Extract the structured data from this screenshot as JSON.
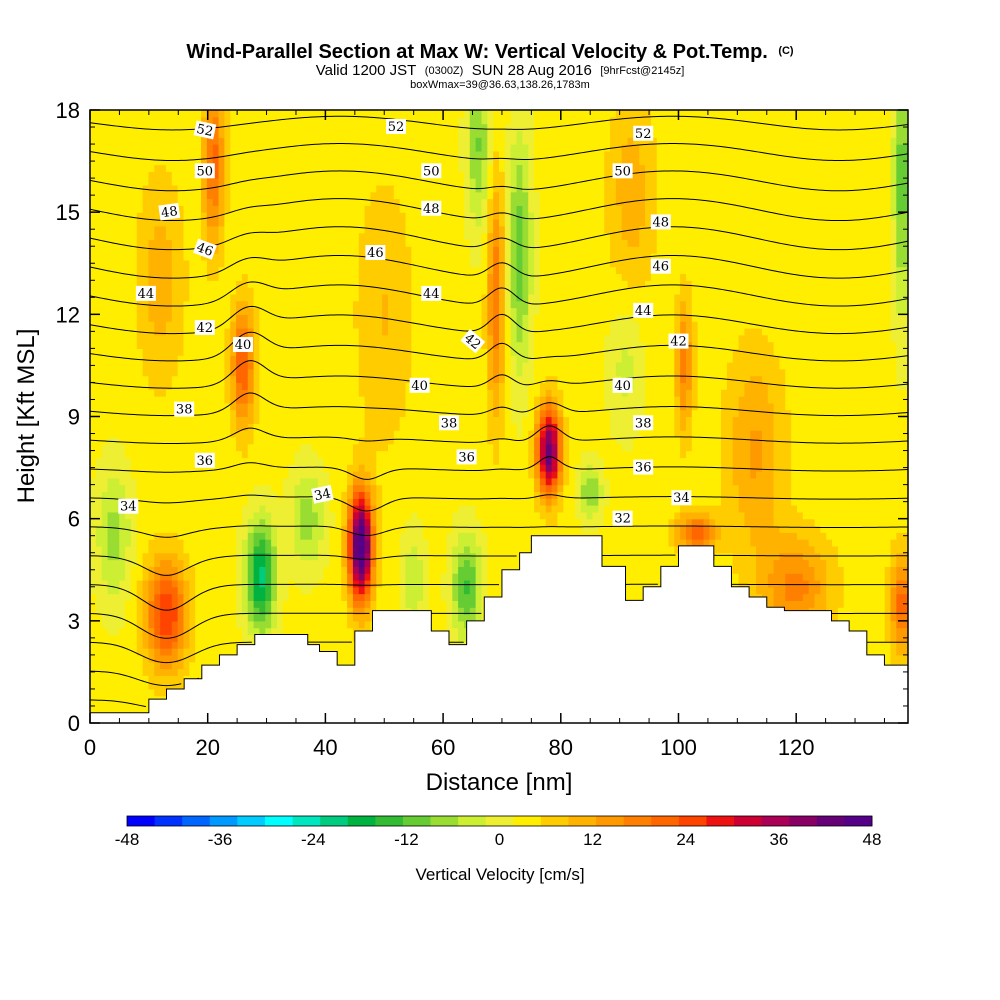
{
  "chart_data": {
    "type": "heatmap",
    "title": "Wind-Parallel Section at Max W: Vertical Velocity & Pot.Temp.",
    "title_mark": "(C)",
    "subtitle": {
      "prefix": "Valid 1200 JST",
      "utc": "(0300Z)",
      "date": "SUN 28 Aug 2016",
      "forecast": "[9hrFcst@2145z]"
    },
    "subtitle2": "boxWmax=39@36.63,138.26,1783m",
    "xlabel": "Distance [nm]",
    "ylabel": "Height [Kft MSL]",
    "xlim": [
      0,
      139
    ],
    "ylim": [
      0,
      18
    ],
    "xticks": [
      0,
      20,
      40,
      60,
      80,
      100,
      120
    ],
    "yticks": [
      0,
      3,
      6,
      9,
      12,
      15,
      18
    ],
    "colorbar": {
      "label": "Vertical Velocity [cm/s]",
      "range": [
        -48,
        48
      ],
      "ticks": [
        -48,
        -36,
        -24,
        -12,
        0,
        12,
        24,
        36,
        48
      ],
      "colors": [
        "#0000ff",
        "#0033ff",
        "#0066ff",
        "#0099ff",
        "#00ccff",
        "#00ffff",
        "#00e6bf",
        "#00cc80",
        "#00b340",
        "#33bb33",
        "#66cc33",
        "#99dd33",
        "#ccee33",
        "#eeee33",
        "#ffee00",
        "#ffcc00",
        "#ffb300",
        "#ff9900",
        "#ff8000",
        "#ff6600",
        "#ff4400",
        "#ee1111",
        "#cc0033",
        "#aa0055",
        "#880066",
        "#660077",
        "#550088"
      ]
    },
    "w_cells": [
      {
        "x": 13,
        "z": 3.2,
        "w": 24,
        "sx": 3.5,
        "sz": 1.6
      },
      {
        "x": 29,
        "z": 4.3,
        "w": -24,
        "sx": 2.5,
        "sz": 1.6
      },
      {
        "x": 46,
        "z": 5.2,
        "w": 48,
        "sx": 2.0,
        "sz": 1.6
      },
      {
        "x": 78,
        "z": 8.0,
        "w": 40,
        "sx": 2.0,
        "sz": 1.3
      },
      {
        "x": 26,
        "z": 10.5,
        "w": 20,
        "sx": 2.0,
        "sz": 1.8
      },
      {
        "x": 21,
        "z": 16.5,
        "w": 18,
        "sx": 1.8,
        "sz": 2.5
      },
      {
        "x": 73,
        "z": 13.8,
        "w": -14,
        "sx": 2.0,
        "sz": 3.5
      },
      {
        "x": 66,
        "z": 17.0,
        "w": -12,
        "sx": 2.0,
        "sz": 2.5
      },
      {
        "x": 69,
        "z": 12.5,
        "w": 16,
        "sx": 1.5,
        "sz": 3.5
      },
      {
        "x": 103,
        "z": 5.6,
        "w": 18,
        "sx": 3.5,
        "sz": 0.6
      },
      {
        "x": 101,
        "z": 10.5,
        "w": 14,
        "sx": 1.5,
        "sz": 2.0
      },
      {
        "x": 120,
        "z": 4.0,
        "w": 14,
        "sx": 6.0,
        "sz": 1.5
      },
      {
        "x": 138,
        "z": 3.5,
        "w": 18,
        "sx": 2.0,
        "sz": 1.5
      },
      {
        "x": 4,
        "z": 5.5,
        "w": -10,
        "sx": 3.0,
        "sz": 2.0
      },
      {
        "x": 64,
        "z": 4.0,
        "w": -16,
        "sx": 2.5,
        "sz": 1.5
      },
      {
        "x": 85,
        "z": 6.8,
        "w": -12,
        "sx": 2.0,
        "sz": 0.8
      },
      {
        "x": 138,
        "z": 16.0,
        "w": -14,
        "sx": 1.5,
        "sz": 4.0
      },
      {
        "x": 37,
        "z": 6.0,
        "w": -10,
        "sx": 3.0,
        "sz": 1.5
      },
      {
        "x": 55,
        "z": 4.2,
        "w": -8,
        "sx": 2.0,
        "sz": 1.5
      },
      {
        "x": 91,
        "z": 10.5,
        "w": -6,
        "sx": 3.0,
        "sz": 2.0
      },
      {
        "x": 113,
        "z": 8.0,
        "w": 10,
        "sx": 5.0,
        "sz": 3.0
      },
      {
        "x": 12,
        "z": 13.0,
        "w": 8,
        "sx": 4.0,
        "sz": 3.0
      },
      {
        "x": 50,
        "z": 12.0,
        "w": 6,
        "sx": 5.0,
        "sz": 4.0
      },
      {
        "x": 92,
        "z": 15.5,
        "w": 8,
        "sx": 4.0,
        "sz": 3.0
      }
    ],
    "terrain": [
      [
        0,
        0.3
      ],
      [
        10,
        0.3
      ],
      [
        10,
        0.7
      ],
      [
        13,
        0.7
      ],
      [
        13,
        1.0
      ],
      [
        16,
        1.0
      ],
      [
        16,
        1.3
      ],
      [
        19,
        1.3
      ],
      [
        19,
        1.7
      ],
      [
        22,
        1.7
      ],
      [
        22,
        2.0
      ],
      [
        25,
        2.0
      ],
      [
        25,
        2.3
      ],
      [
        28,
        2.3
      ],
      [
        28,
        2.6
      ],
      [
        37,
        2.6
      ],
      [
        37,
        2.3
      ],
      [
        39,
        2.3
      ],
      [
        39,
        2.1
      ],
      [
        42,
        2.1
      ],
      [
        42,
        1.7
      ],
      [
        45,
        1.7
      ],
      [
        45,
        2.7
      ],
      [
        48,
        2.7
      ],
      [
        48,
        3.3
      ],
      [
        58,
        3.3
      ],
      [
        58,
        2.7
      ],
      [
        61,
        2.7
      ],
      [
        61,
        2.3
      ],
      [
        64,
        2.3
      ],
      [
        64,
        3.0
      ],
      [
        67,
        3.0
      ],
      [
        67,
        3.7
      ],
      [
        70,
        3.7
      ],
      [
        70,
        4.5
      ],
      [
        73,
        4.5
      ],
      [
        73,
        5.0
      ],
      [
        75,
        5.0
      ],
      [
        75,
        5.5
      ],
      [
        87,
        5.5
      ],
      [
        87,
        4.6
      ],
      [
        91,
        4.6
      ],
      [
        91,
        3.6
      ],
      [
        94,
        3.6
      ],
      [
        94,
        4.0
      ],
      [
        97,
        4.0
      ],
      [
        97,
        4.6
      ],
      [
        100,
        4.6
      ],
      [
        100,
        5.2
      ],
      [
        106,
        5.2
      ],
      [
        106,
        4.6
      ],
      [
        109,
        4.6
      ],
      [
        109,
        4.0
      ],
      [
        112,
        4.0
      ],
      [
        112,
        3.7
      ],
      [
        115,
        3.7
      ],
      [
        115,
        3.4
      ],
      [
        118,
        3.4
      ],
      [
        118,
        3.3
      ],
      [
        126,
        3.3
      ],
      [
        126,
        3.0
      ],
      [
        129,
        3.0
      ],
      [
        129,
        2.7
      ],
      [
        132,
        2.7
      ],
      [
        132,
        2.0
      ],
      [
        135,
        2.0
      ],
      [
        135,
        1.7
      ],
      [
        139,
        1.7
      ]
    ],
    "isentropes": {
      "levels": [
        32,
        33,
        34,
        35,
        36,
        37,
        38,
        39,
        40,
        41,
        42,
        43,
        44,
        45,
        46,
        47,
        48,
        49,
        50,
        51,
        52,
        53
      ],
      "labels": [
        {
          "text": "34",
          "x": 6.5,
          "z": 6.35,
          "rot": 0
        },
        {
          "text": "36",
          "x": 19.5,
          "z": 7.7,
          "rot": 0
        },
        {
          "text": "38",
          "x": 16,
          "z": 9.2,
          "rot": 0
        },
        {
          "text": "40",
          "x": 26,
          "z": 11.1,
          "rot": 0
        },
        {
          "text": "42",
          "x": 19.5,
          "z": 11.6,
          "rot": 0
        },
        {
          "text": "44",
          "x": 9.5,
          "z": 12.6,
          "rot": 0
        },
        {
          "text": "46",
          "x": 19.5,
          "z": 13.9,
          "rot": 20
        },
        {
          "text": "48",
          "x": 13.5,
          "z": 15.0,
          "rot": -8
        },
        {
          "text": "50",
          "x": 19.5,
          "z": 16.2,
          "rot": 0
        },
        {
          "text": "52",
          "x": 19.5,
          "z": 17.4,
          "rot": 12
        },
        {
          "text": "34",
          "x": 39.5,
          "z": 6.7,
          "rot": -12
        },
        {
          "text": "36",
          "x": 64,
          "z": 7.8,
          "rot": 0
        },
        {
          "text": "38",
          "x": 61,
          "z": 8.8,
          "rot": 0
        },
        {
          "text": "40",
          "x": 56,
          "z": 9.9,
          "rot": 0
        },
        {
          "text": "42",
          "x": 65,
          "z": 11.2,
          "rot": 40
        },
        {
          "text": "44",
          "x": 58,
          "z": 12.6,
          "rot": 0
        },
        {
          "text": "46",
          "x": 48.5,
          "z": 13.8,
          "rot": 0
        },
        {
          "text": "48",
          "x": 58,
          "z": 15.1,
          "rot": 0
        },
        {
          "text": "50",
          "x": 58,
          "z": 16.2,
          "rot": 0
        },
        {
          "text": "52",
          "x": 52,
          "z": 17.5,
          "rot": 0
        },
        {
          "text": "32",
          "x": 90.5,
          "z": 6.0,
          "rot": 0
        },
        {
          "text": "34",
          "x": 100.5,
          "z": 6.6,
          "rot": 0
        },
        {
          "text": "36",
          "x": 94,
          "z": 7.5,
          "rot": 0
        },
        {
          "text": "38",
          "x": 94,
          "z": 8.8,
          "rot": 0
        },
        {
          "text": "40",
          "x": 90.5,
          "z": 9.9,
          "rot": 0
        },
        {
          "text": "42",
          "x": 100,
          "z": 11.2,
          "rot": 0
        },
        {
          "text": "44",
          "x": 94,
          "z": 12.1,
          "rot": 0
        },
        {
          "text": "46",
          "x": 97,
          "z": 13.4,
          "rot": 0
        },
        {
          "text": "48",
          "x": 97,
          "z": 14.7,
          "rot": 0
        },
        {
          "text": "50",
          "x": 90.5,
          "z": 16.2,
          "rot": 0
        },
        {
          "text": "52",
          "x": 94,
          "z": 17.3,
          "rot": 0
        }
      ]
    }
  }
}
